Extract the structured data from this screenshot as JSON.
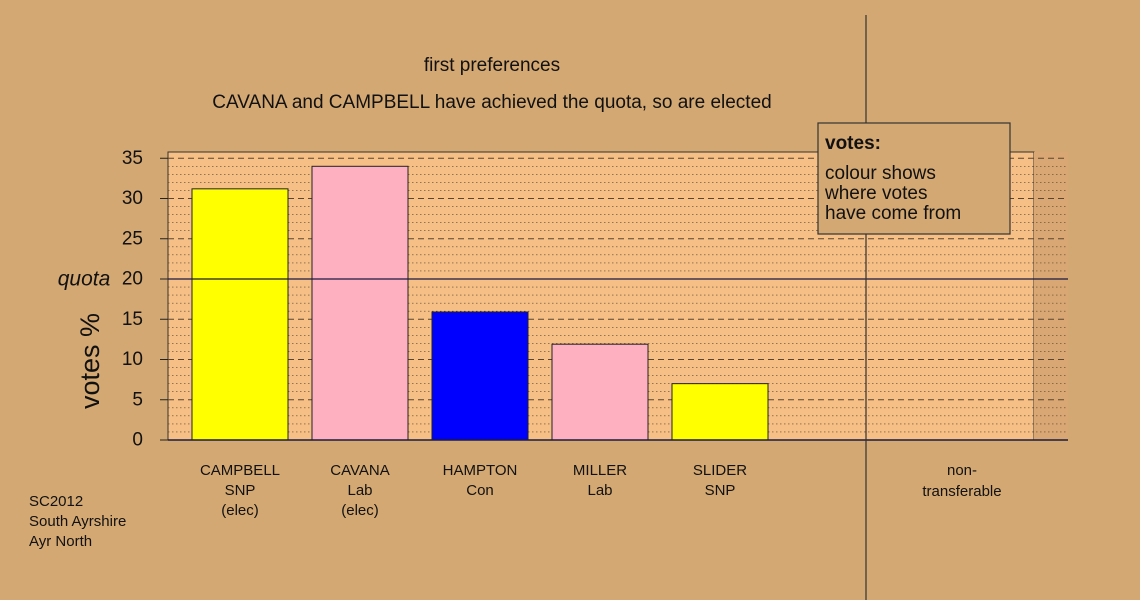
{
  "chart_data": {
    "type": "bar",
    "title": "first preferences",
    "subtitle": "CAVANA and CAMPBELL have achieved the quota, so are elected",
    "ylabel": "votes %",
    "ylim": [
      0,
      35
    ],
    "yticks": [
      0,
      5,
      10,
      15,
      20,
      25,
      30,
      35
    ],
    "quota": {
      "label": "quota",
      "value": 20
    },
    "categories": [
      {
        "name": "CAMPBELL",
        "party": "SNP",
        "note": "(elec)"
      },
      {
        "name": "CAVANA",
        "party": "Lab",
        "note": "(elec)"
      },
      {
        "name": "HAMPTON",
        "party": "Con",
        "note": ""
      },
      {
        "name": "MILLER",
        "party": "Lab",
        "note": ""
      },
      {
        "name": "SLIDER",
        "party": "SNP",
        "note": ""
      }
    ],
    "values": [
      31.2,
      34.0,
      15.9,
      11.9,
      7.0
    ],
    "colors": [
      "#ffff00",
      "#ffb0c0",
      "#0000ff",
      "#ffb0c0",
      "#ffff00"
    ],
    "nontransferable": {
      "label_line1": "non-",
      "label_line2": "transferable",
      "value": 0
    },
    "legend": {
      "title": "votes:",
      "lines": [
        "colour shows",
        "where votes",
        "have come from"
      ],
      "position": "top-right"
    },
    "grid": true
  },
  "footer": {
    "lines": [
      "SC2012",
      "South Ayrshire",
      "Ayr North"
    ]
  },
  "colors": {
    "background": "#d4a872",
    "plot_background": "#f5bf86",
    "legend_background": "#d4a872"
  }
}
